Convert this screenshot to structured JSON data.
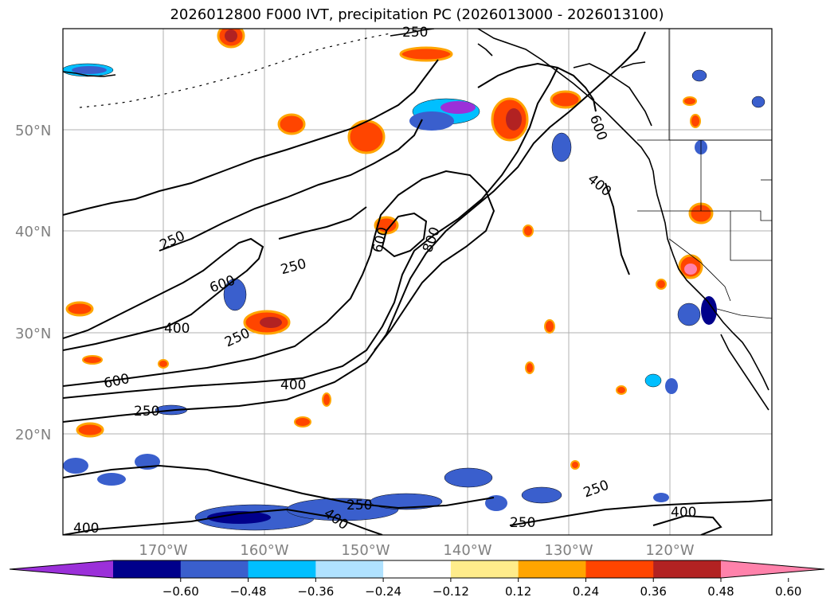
{
  "title": "2026012800 F000 IVT, precipitation PC (2026013000 - 2026013100)",
  "map": {
    "lat_labels": [
      "50°N",
      "40°N",
      "30°N",
      "20°N"
    ],
    "lon_labels": [
      "170°W",
      "160°W",
      "150°W",
      "140°W",
      "130°W",
      "120°W"
    ],
    "contour_labels": [
      "250",
      "250",
      "250",
      "250",
      "250",
      "250",
      "250",
      "250",
      "400",
      "400",
      "400",
      "400",
      "400",
      "400",
      "600",
      "600",
      "600",
      "600",
      "800"
    ],
    "colors": {
      "land_outline": "#000000",
      "grid": "#b0b0b0",
      "ivt_contour": "#000000"
    }
  },
  "colorbar": {
    "colors": [
      "#9b30d9",
      "#00008b",
      "#3a5fcd",
      "#00bfff",
      "#b0e2ff",
      "#ffffff",
      "#ffec8b",
      "#ffa500",
      "#ff4500",
      "#b22222",
      "#ff82ab"
    ],
    "tick_labels": [
      "−0.60",
      "−0.48",
      "−0.36",
      "−0.24",
      "−0.12",
      "0.12",
      "0.24",
      "0.36",
      "0.48",
      "0.60"
    ]
  }
}
